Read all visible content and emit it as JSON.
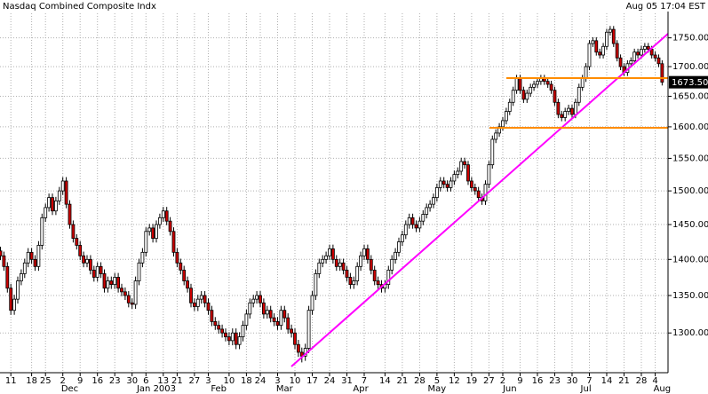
{
  "chart_data": {
    "type": "candlestick",
    "title": "Nasdaq Combined Composite Indx",
    "timestamp": "Aug 05 17:04 EST",
    "log_y": true,
    "grid": true,
    "up_color": "#ffffff",
    "down_color": "#cc0000",
    "ylim": [
      1249,
      1818
    ],
    "yticks": [
      {
        "value": 1300,
        "label": "1300.00"
      },
      {
        "value": 1350,
        "label": "1350.00"
      },
      {
        "value": 1400,
        "label": "1400.00"
      },
      {
        "value": 1450,
        "label": "1450.00"
      },
      {
        "value": 1500,
        "label": "1500.00"
      },
      {
        "value": 1550,
        "label": "1550.00"
      },
      {
        "value": 1600,
        "label": "1600.00"
      },
      {
        "value": 1650,
        "label": "1650.00"
      },
      {
        "value": 1700,
        "label": "1700.00"
      },
      {
        "value": 1750,
        "label": "1750.00"
      }
    ],
    "xlim": [
      -0.13,
      192.7
    ],
    "xticks": [
      {
        "value": 3,
        "label": "11"
      },
      {
        "value": 9,
        "label": "18"
      },
      {
        "value": 13,
        "label": "25"
      },
      {
        "value": 18,
        "label": "2"
      },
      {
        "value": 23,
        "label": "9"
      },
      {
        "value": 28,
        "label": "16"
      },
      {
        "value": 33,
        "label": "23"
      },
      {
        "value": 38,
        "label": "30"
      },
      {
        "value": 42,
        "label": "6"
      },
      {
        "value": 47,
        "label": "13"
      },
      {
        "value": 51,
        "label": "21"
      },
      {
        "value": 56,
        "label": "27"
      },
      {
        "value": 60,
        "label": "3"
      },
      {
        "value": 66,
        "label": "10"
      },
      {
        "value": 71,
        "label": "18"
      },
      {
        "value": 75,
        "label": "24"
      },
      {
        "value": 80,
        "label": "3"
      },
      {
        "value": 85,
        "label": "10"
      },
      {
        "value": 90,
        "label": "17"
      },
      {
        "value": 95,
        "label": "24"
      },
      {
        "value": 100,
        "label": "31"
      },
      {
        "value": 105,
        "label": "7"
      },
      {
        "value": 111,
        "label": "14"
      },
      {
        "value": 116,
        "label": "21"
      },
      {
        "value": 121,
        "label": "28"
      },
      {
        "value": 126,
        "label": "5"
      },
      {
        "value": 131,
        "label": "12"
      },
      {
        "value": 136,
        "label": "19"
      },
      {
        "value": 141,
        "label": "27"
      },
      {
        "value": 145,
        "label": "2"
      },
      {
        "value": 150,
        "label": "9"
      },
      {
        "value": 155,
        "label": "16"
      },
      {
        "value": 160,
        "label": "23"
      },
      {
        "value": 165,
        "label": "30"
      },
      {
        "value": 170,
        "label": "7"
      },
      {
        "value": 175,
        "label": "14"
      },
      {
        "value": 180,
        "label": "21"
      },
      {
        "value": 185,
        "label": "28"
      },
      {
        "value": 189,
        "label": "4"
      }
    ],
    "months": [
      {
        "value": 20,
        "label": "Dec"
      },
      {
        "value": 45,
        "label": "Jan 2003"
      },
      {
        "value": 63,
        "label": "Feb"
      },
      {
        "value": 82,
        "label": "Mar"
      },
      {
        "value": 104,
        "label": "Apr"
      },
      {
        "value": 126,
        "label": "May"
      },
      {
        "value": 147,
        "label": "Jun"
      },
      {
        "value": 169,
        "label": "Jul"
      },
      {
        "value": 191,
        "label": "Aug"
      }
    ],
    "last_label": {
      "value": 1673.5,
      "label": "1673.50"
    },
    "candles": [
      [
        1412,
        1418,
        1399,
        1405
      ],
      [
        1405,
        1411,
        1384,
        1390
      ],
      [
        1390,
        1396,
        1354,
        1360
      ],
      [
        1360,
        1366,
        1324,
        1330
      ],
      [
        1330,
        1351,
        1324,
        1345
      ],
      [
        1345,
        1376,
        1339,
        1370
      ],
      [
        1370,
        1386,
        1364,
        1380
      ],
      [
        1380,
        1401,
        1374,
        1395
      ],
      [
        1395,
        1416,
        1389,
        1410
      ],
      [
        1410,
        1416,
        1394,
        1400
      ],
      [
        1400,
        1406,
        1384,
        1390
      ],
      [
        1390,
        1426,
        1384,
        1420
      ],
      [
        1420,
        1466,
        1414,
        1460
      ],
      [
        1460,
        1481,
        1454,
        1475
      ],
      [
        1475,
        1496,
        1469,
        1490
      ],
      [
        1490,
        1496,
        1464,
        1470
      ],
      [
        1470,
        1491,
        1464,
        1485
      ],
      [
        1485,
        1506,
        1479,
        1500
      ],
      [
        1500,
        1521,
        1494,
        1515
      ],
      [
        1515,
        1521,
        1474,
        1480
      ],
      [
        1480,
        1486,
        1444,
        1450
      ],
      [
        1450,
        1456,
        1424,
        1430
      ],
      [
        1430,
        1436,
        1414,
        1420
      ],
      [
        1420,
        1426,
        1399,
        1405
      ],
      [
        1405,
        1411,
        1389,
        1395
      ],
      [
        1395,
        1406,
        1389,
        1400
      ],
      [
        1400,
        1406,
        1379,
        1385
      ],
      [
        1385,
        1391,
        1369,
        1375
      ],
      [
        1375,
        1396,
        1369,
        1390
      ],
      [
        1390,
        1396,
        1374,
        1380
      ],
      [
        1380,
        1386,
        1354,
        1360
      ],
      [
        1360,
        1376,
        1354,
        1370
      ],
      [
        1370,
        1376,
        1359,
        1365
      ],
      [
        1365,
        1381,
        1359,
        1375
      ],
      [
        1375,
        1381,
        1354,
        1360
      ],
      [
        1360,
        1366,
        1349,
        1355
      ],
      [
        1355,
        1361,
        1344,
        1350
      ],
      [
        1350,
        1356,
        1334,
        1340
      ],
      [
        1340,
        1346,
        1332,
        1338
      ],
      [
        1338,
        1376,
        1332,
        1370
      ],
      [
        1370,
        1401,
        1364,
        1395
      ],
      [
        1395,
        1416,
        1389,
        1410
      ],
      [
        1410,
        1446,
        1404,
        1440
      ],
      [
        1440,
        1451,
        1434,
        1445
      ],
      [
        1445,
        1451,
        1424,
        1430
      ],
      [
        1430,
        1456,
        1424,
        1450
      ],
      [
        1450,
        1466,
        1444,
        1460
      ],
      [
        1460,
        1476,
        1454,
        1470
      ],
      [
        1470,
        1476,
        1449,
        1455
      ],
      [
        1455,
        1461,
        1434,
        1440
      ],
      [
        1440,
        1446,
        1404,
        1410
      ],
      [
        1410,
        1416,
        1389,
        1395
      ],
      [
        1395,
        1401,
        1379,
        1385
      ],
      [
        1385,
        1391,
        1364,
        1370
      ],
      [
        1370,
        1376,
        1354,
        1360
      ],
      [
        1360,
        1366,
        1334,
        1340
      ],
      [
        1340,
        1346,
        1329,
        1335
      ],
      [
        1335,
        1351,
        1329,
        1345
      ],
      [
        1345,
        1356,
        1339,
        1350
      ],
      [
        1350,
        1356,
        1334,
        1340
      ],
      [
        1340,
        1346,
        1324,
        1330
      ],
      [
        1330,
        1336,
        1309,
        1315
      ],
      [
        1315,
        1321,
        1304,
        1310
      ],
      [
        1310,
        1316,
        1299,
        1305
      ],
      [
        1305,
        1311,
        1294,
        1300
      ],
      [
        1300,
        1306,
        1289,
        1295
      ],
      [
        1295,
        1301,
        1284,
        1290
      ],
      [
        1290,
        1306,
        1284,
        1300
      ],
      [
        1300,
        1306,
        1279,
        1285
      ],
      [
        1285,
        1301,
        1279,
        1295
      ],
      [
        1295,
        1316,
        1289,
        1310
      ],
      [
        1310,
        1331,
        1304,
        1325
      ],
      [
        1325,
        1346,
        1319,
        1340
      ],
      [
        1340,
        1351,
        1334,
        1345
      ],
      [
        1345,
        1356,
        1339,
        1350
      ],
      [
        1350,
        1356,
        1334,
        1340
      ],
      [
        1340,
        1346,
        1319,
        1325
      ],
      [
        1325,
        1336,
        1319,
        1330
      ],
      [
        1330,
        1336,
        1314,
        1320
      ],
      [
        1320,
        1326,
        1309,
        1315
      ],
      [
        1315,
        1321,
        1304,
        1310
      ],
      [
        1310,
        1336,
        1304,
        1330
      ],
      [
        1330,
        1336,
        1314,
        1320
      ],
      [
        1320,
        1326,
        1299,
        1305
      ],
      [
        1305,
        1311,
        1294,
        1300
      ],
      [
        1300,
        1306,
        1279,
        1285
      ],
      [
        1285,
        1291,
        1269,
        1275
      ],
      [
        1275,
        1281,
        1262,
        1270
      ],
      [
        1270,
        1286,
        1264,
        1280
      ],
      [
        1280,
        1336,
        1274,
        1330
      ],
      [
        1330,
        1356,
        1324,
        1350
      ],
      [
        1350,
        1386,
        1344,
        1380
      ],
      [
        1380,
        1401,
        1374,
        1395
      ],
      [
        1395,
        1406,
        1389,
        1400
      ],
      [
        1400,
        1411,
        1394,
        1405
      ],
      [
        1405,
        1421,
        1399,
        1415
      ],
      [
        1415,
        1421,
        1394,
        1400
      ],
      [
        1400,
        1406,
        1384,
        1390
      ],
      [
        1390,
        1401,
        1384,
        1395
      ],
      [
        1395,
        1401,
        1379,
        1385
      ],
      [
        1385,
        1391,
        1369,
        1375
      ],
      [
        1375,
        1381,
        1359,
        1365
      ],
      [
        1365,
        1376,
        1359,
        1370
      ],
      [
        1370,
        1396,
        1364,
        1390
      ],
      [
        1390,
        1411,
        1384,
        1405
      ],
      [
        1405,
        1421,
        1399,
        1415
      ],
      [
        1415,
        1421,
        1394,
        1400
      ],
      [
        1400,
        1406,
        1379,
        1385
      ],
      [
        1385,
        1391,
        1364,
        1370
      ],
      [
        1370,
        1376,
        1359,
        1365
      ],
      [
        1365,
        1371,
        1354,
        1360
      ],
      [
        1360,
        1371,
        1354,
        1365
      ],
      [
        1365,
        1391,
        1359,
        1385
      ],
      [
        1385,
        1406,
        1379,
        1400
      ],
      [
        1400,
        1416,
        1394,
        1410
      ],
      [
        1410,
        1431,
        1404,
        1425
      ],
      [
        1425,
        1441,
        1419,
        1435
      ],
      [
        1435,
        1456,
        1429,
        1450
      ],
      [
        1450,
        1466,
        1444,
        1460
      ],
      [
        1460,
        1466,
        1444,
        1450
      ],
      [
        1450,
        1456,
        1439,
        1445
      ],
      [
        1445,
        1461,
        1439,
        1455
      ],
      [
        1455,
        1471,
        1449,
        1465
      ],
      [
        1465,
        1481,
        1459,
        1475
      ],
      [
        1475,
        1486,
        1469,
        1480
      ],
      [
        1480,
        1496,
        1474,
        1490
      ],
      [
        1490,
        1511,
        1484,
        1505
      ],
      [
        1505,
        1521,
        1499,
        1515
      ],
      [
        1515,
        1521,
        1504,
        1510
      ],
      [
        1510,
        1516,
        1499,
        1505
      ],
      [
        1505,
        1521,
        1499,
        1515
      ],
      [
        1515,
        1531,
        1509,
        1525
      ],
      [
        1525,
        1536,
        1519,
        1530
      ],
      [
        1530,
        1551,
        1524,
        1545
      ],
      [
        1545,
        1551,
        1534,
        1540
      ],
      [
        1540,
        1546,
        1509,
        1515
      ],
      [
        1515,
        1521,
        1499,
        1505
      ],
      [
        1505,
        1511,
        1494,
        1500
      ],
      [
        1500,
        1506,
        1484,
        1490
      ],
      [
        1490,
        1496,
        1479,
        1485
      ],
      [
        1485,
        1516,
        1479,
        1510
      ],
      [
        1510,
        1546,
        1504,
        1540
      ],
      [
        1540,
        1586,
        1534,
        1580
      ],
      [
        1580,
        1596,
        1574,
        1590
      ],
      [
        1590,
        1606,
        1584,
        1600
      ],
      [
        1600,
        1616,
        1594,
        1610
      ],
      [
        1610,
        1631,
        1604,
        1625
      ],
      [
        1625,
        1646,
        1619,
        1640
      ],
      [
        1640,
        1666,
        1634,
        1660
      ],
      [
        1660,
        1686,
        1654,
        1680
      ],
      [
        1680,
        1686,
        1654,
        1660
      ],
      [
        1660,
        1666,
        1639,
        1645
      ],
      [
        1645,
        1661,
        1639,
        1655
      ],
      [
        1655,
        1671,
        1649,
        1665
      ],
      [
        1665,
        1676,
        1659,
        1670
      ],
      [
        1670,
        1681,
        1664,
        1675
      ],
      [
        1675,
        1686,
        1669,
        1680
      ],
      [
        1680,
        1686,
        1669,
        1675
      ],
      [
        1675,
        1681,
        1664,
        1670
      ],
      [
        1670,
        1676,
        1654,
        1660
      ],
      [
        1660,
        1666,
        1634,
        1640
      ],
      [
        1640,
        1646,
        1614,
        1620
      ],
      [
        1620,
        1626,
        1609,
        1615
      ],
      [
        1615,
        1631,
        1609,
        1625
      ],
      [
        1625,
        1636,
        1619,
        1630
      ],
      [
        1630,
        1636,
        1614,
        1620
      ],
      [
        1620,
        1646,
        1614,
        1640
      ],
      [
        1640,
        1671,
        1634,
        1665
      ],
      [
        1665,
        1686,
        1659,
        1680
      ],
      [
        1680,
        1706,
        1674,
        1700
      ],
      [
        1700,
        1746,
        1694,
        1740
      ],
      [
        1740,
        1751,
        1734,
        1745
      ],
      [
        1745,
        1751,
        1719,
        1725
      ],
      [
        1725,
        1731,
        1714,
        1720
      ],
      [
        1720,
        1741,
        1714,
        1735
      ],
      [
        1735,
        1766,
        1729,
        1760
      ],
      [
        1760,
        1771,
        1754,
        1765
      ],
      [
        1765,
        1771,
        1734,
        1740
      ],
      [
        1740,
        1746,
        1709,
        1715
      ],
      [
        1715,
        1721,
        1694,
        1700
      ],
      [
        1700,
        1706,
        1684,
        1690
      ],
      [
        1690,
        1711,
        1684,
        1705
      ],
      [
        1705,
        1716,
        1699,
        1710
      ],
      [
        1710,
        1731,
        1704,
        1725
      ],
      [
        1725,
        1731,
        1714,
        1720
      ],
      [
        1720,
        1736,
        1714,
        1730
      ],
      [
        1730,
        1741,
        1724,
        1735
      ],
      [
        1735,
        1741,
        1724,
        1730
      ],
      [
        1730,
        1736,
        1714,
        1720
      ],
      [
        1720,
        1726,
        1709,
        1715
      ],
      [
        1715,
        1721,
        1699,
        1705
      ],
      [
        1705,
        1711,
        1668,
        1673.5
      ]
    ]
  }
}
